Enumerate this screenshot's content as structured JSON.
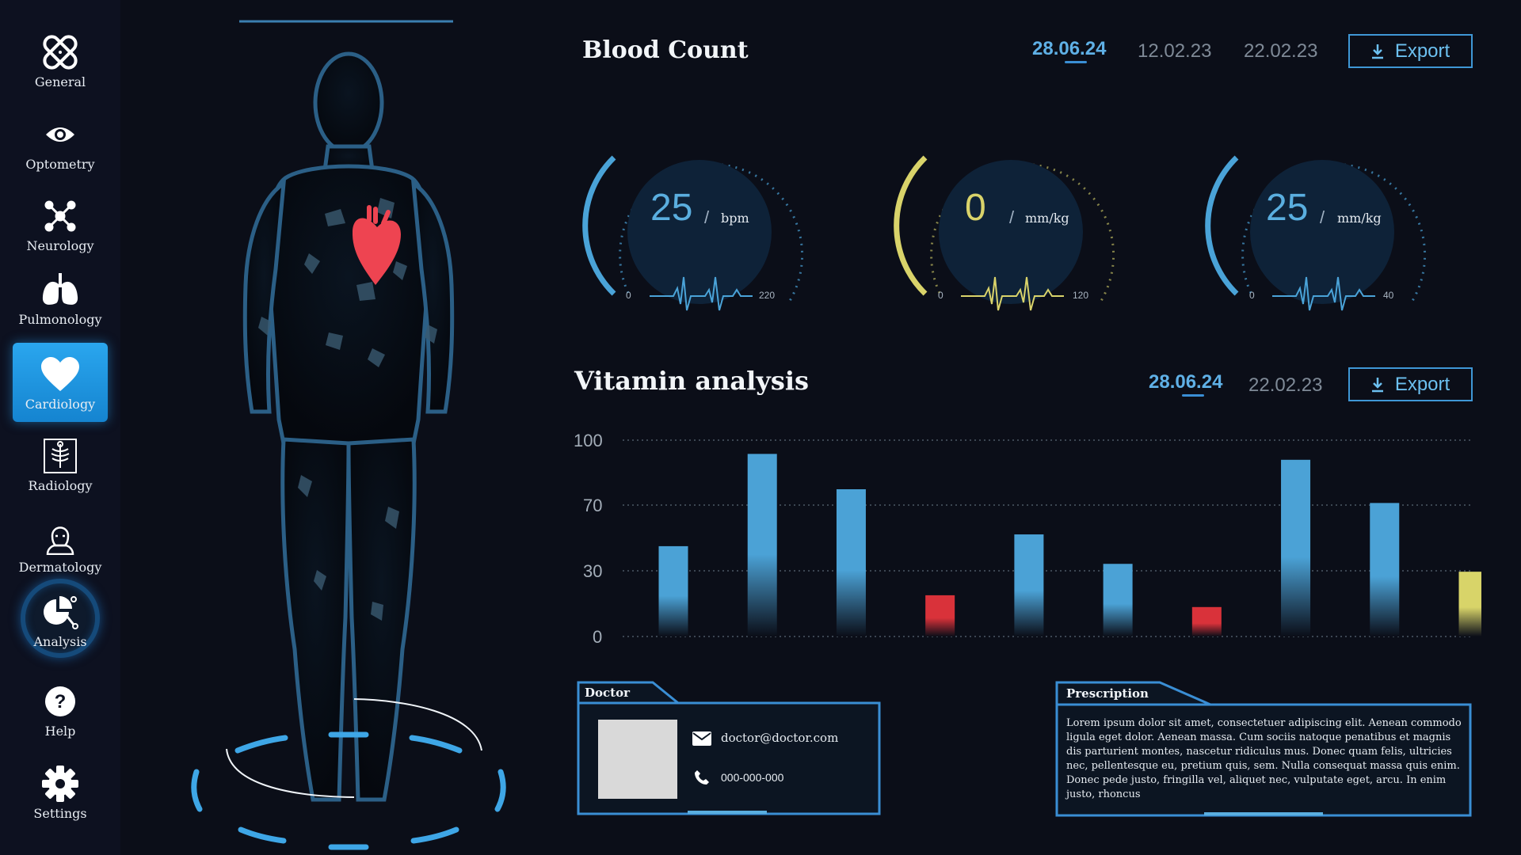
{
  "sidebar": {
    "items": [
      {
        "label": "General",
        "icon": "bandage-icon"
      },
      {
        "label": "Optometry",
        "icon": "eye-icon"
      },
      {
        "label": "Neurology",
        "icon": "neurons-icon"
      },
      {
        "label": "Pulmonology",
        "icon": "lungs-icon"
      },
      {
        "label": "Cardiology",
        "icon": "heart-icon",
        "active": true
      },
      {
        "label": "Radiology",
        "icon": "xray-icon"
      },
      {
        "label": "Dermatology",
        "icon": "person-icon"
      },
      {
        "label": "Analysis",
        "icon": "pie-chart-icon"
      },
      {
        "label": "Help",
        "icon": "help-icon"
      },
      {
        "label": "Settings",
        "icon": "gear-icon"
      }
    ]
  },
  "blood_count": {
    "title": "Blood Count",
    "dates": [
      "28.06.24",
      "12.02.23",
      "22.02.23"
    ],
    "active_date": "28.06.24",
    "export_label": "Export",
    "gauges": [
      {
        "value": "25",
        "unit": "bpm",
        "min": "0",
        "max": "220",
        "color": "#4aa3d8"
      },
      {
        "value": "0",
        "unit": "mm/kg",
        "min": "0",
        "max": "120",
        "color": "#d9d36a"
      },
      {
        "value": "25",
        "unit": "mm/kg",
        "min": "0",
        "max": "40",
        "color": "#4aa3d8"
      }
    ]
  },
  "vitamin_analysis": {
    "title": "Vitamin analysis",
    "dates": [
      "28.06.24",
      "22.02.23"
    ],
    "active_date": "28.06.24",
    "export_label": "Export"
  },
  "chart_data": {
    "type": "bar",
    "title": "",
    "xlabel": "",
    "ylabel": "",
    "y_ticks": [
      "100",
      "70",
      "30",
      "0"
    ],
    "grid": true,
    "values": [
      46,
      93,
      75,
      21,
      52,
      37,
      15,
      90,
      68,
      33
    ],
    "bar_colors": [
      "#4ba2d6",
      "#4ba2d6",
      "#4ba2d6",
      "#d9323a",
      "#4ba2d6",
      "#4ba2d6",
      "#d9323a",
      "#4ba2d6",
      "#4ba2d6",
      "#d8d469"
    ]
  },
  "doctor_card": {
    "title": "Doctor",
    "email": "doctor@doctor.com",
    "phone": "000-000-000"
  },
  "prescription_card": {
    "title": "Prescription",
    "text": "Lorem ipsum dolor sit amet, consectetuer adipiscing elit. Aenean commodo ligula eget dolor. Aenean massa. Cum sociis natoque penatibus et magnis dis parturient montes, nascetur ridiculus mus. Donec quam felis, ultricies nec, pellentesque eu, pretium quis, sem. Nulla consequat massa quis enim. Donec pede justo, fringilla vel, aliquet nec, vulputate eget, arcu. In enim justo, rhoncus"
  }
}
